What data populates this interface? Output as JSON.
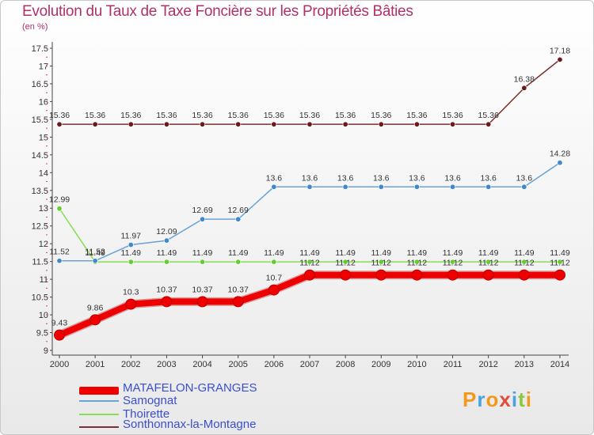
{
  "title": "Evolution du Taux de Taxe Foncière sur les Propriétés Bâties",
  "subtitle": "(en %)",
  "logo": "Proxiti",
  "chart_data": {
    "type": "line",
    "title": "Evolution du Taux de Taxe Foncière sur les Propriétés Bâties",
    "ylabel": "(en %)",
    "xlabel": "",
    "ylim": [
      9,
      17.5
    ],
    "ytick_step": 0.5,
    "grid": false,
    "legend_position": "bottom-left",
    "categories": [
      "2000",
      "2001",
      "2002",
      "2003",
      "2004",
      "2005",
      "2006",
      "2007",
      "2008",
      "2009",
      "2010",
      "2011",
      "2012",
      "2013",
      "2014"
    ],
    "series": [
      {
        "name": "MATAFELON-GRANGES",
        "color": "#ee0000",
        "marker_color": "#ee0000",
        "emphasis": true,
        "values": [
          9.43,
          9.86,
          10.3,
          10.37,
          10.37,
          10.37,
          10.7,
          11.12,
          11.12,
          11.12,
          11.12,
          11.12,
          11.12,
          11.12,
          11.12
        ],
        "labels": [
          "9.43",
          "9.86",
          "10.3",
          "10.37",
          "10.37",
          "10.37",
          "10.7",
          "11.12",
          "11.12",
          "11.12",
          "11.12",
          "11.12",
          "11.12",
          "11.12",
          "11.12"
        ]
      },
      {
        "name": "Samognat",
        "color": "#6aa2d6",
        "marker_color": "#3f88cc",
        "emphasis": false,
        "values": [
          11.52,
          11.52,
          11.97,
          12.09,
          12.69,
          12.69,
          13.6,
          13.6,
          13.6,
          13.6,
          13.6,
          13.6,
          13.6,
          13.6,
          14.28
        ],
        "labels": [
          "11.52",
          "11.52",
          "11.97",
          "12.09",
          "12.69",
          "12.69",
          "13.6",
          "13.6",
          "13.6",
          "13.6",
          "13.6",
          "13.6",
          "13.6",
          "13.6",
          "14.28"
        ]
      },
      {
        "name": "Thoirette",
        "color": "#88dd55",
        "marker_color": "#66cc33",
        "emphasis": false,
        "values": [
          12.99,
          11.49,
          11.49,
          11.49,
          11.49,
          11.49,
          11.49,
          11.49,
          11.49,
          11.49,
          11.49,
          11.49,
          11.49,
          11.49,
          11.49
        ],
        "labels": [
          "12.99",
          "11.49",
          "11.49",
          "11.49",
          "11.49",
          "11.49",
          "11.49",
          "11.49",
          "11.49",
          "11.49",
          "11.49",
          "11.49",
          "11.49",
          "11.49",
          "11.49"
        ]
      },
      {
        "name": "Sonthonnax-la-Montagne",
        "color": "#7a3030",
        "marker_color": "#6a1a1a",
        "emphasis": false,
        "values": [
          15.36,
          15.36,
          15.36,
          15.36,
          15.36,
          15.36,
          15.36,
          15.36,
          15.36,
          15.36,
          15.36,
          15.36,
          15.36,
          16.38,
          17.18
        ],
        "labels": [
          "15.36",
          "15.36",
          "15.36",
          "15.36",
          "15.36",
          "15.36",
          "15.36",
          "15.36",
          "15.36",
          "15.36",
          "15.36",
          "15.36",
          "15.36",
          "16.38",
          "17.18"
        ]
      }
    ]
  }
}
